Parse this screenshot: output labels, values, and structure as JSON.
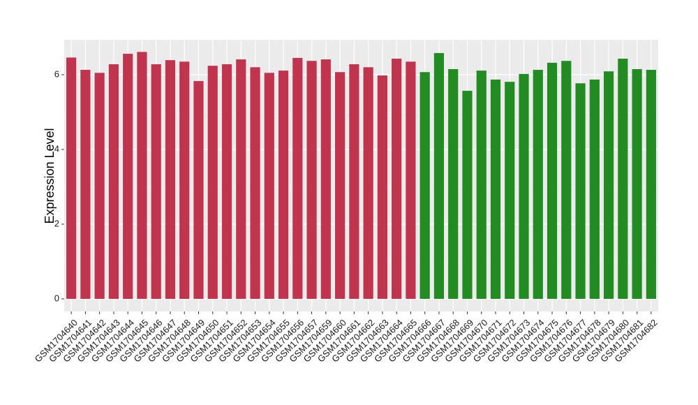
{
  "chart_data": {
    "type": "bar",
    "title": "",
    "xlabel": "",
    "ylabel": "Expression Level",
    "ylim": [
      0,
      6.9
    ],
    "yticks": [
      0,
      2,
      4,
      6
    ],
    "ytick_labels": [
      "0",
      "2",
      "4",
      "6"
    ],
    "grid": true,
    "legend": "none",
    "colors": {
      "group1": "#C0344D",
      "group2": "#228B22",
      "panel": "#EBEBEB",
      "grid": "#FFFFFF"
    },
    "categories": [
      "GSM1704640",
      "GSM1704641",
      "GSM1704642",
      "GSM1704643",
      "GSM1704644",
      "GSM1704645",
      "GSM1704646",
      "GSM1704647",
      "GSM1704648",
      "GSM1704649",
      "GSM1704650",
      "GSM1704651",
      "GSM1704652",
      "GSM1704653",
      "GSM1704654",
      "GSM1704655",
      "GSM1704656",
      "GSM1704657",
      "GSM1704659",
      "GSM1704660",
      "GSM1704661",
      "GSM1704662",
      "GSM1704663",
      "GSM1704664",
      "GSM1704665",
      "GSM1704666",
      "GSM1704667",
      "GSM1704668",
      "GSM1704669",
      "GSM1704670",
      "GSM1704671",
      "GSM1704672",
      "GSM1704673",
      "GSM1704674",
      "GSM1704675",
      "GSM1704676",
      "GSM1704677",
      "GSM1704678",
      "GSM1704679",
      "GSM1704680",
      "GSM1704681",
      "GSM1704682"
    ],
    "values": [
      6.46,
      6.13,
      6.05,
      6.28,
      6.56,
      6.61,
      6.28,
      6.39,
      6.35,
      5.83,
      6.24,
      6.28,
      6.41,
      6.2,
      6.05,
      6.11,
      6.45,
      6.37,
      6.41,
      6.07,
      6.28,
      6.2,
      5.98,
      6.43,
      6.35,
      6.07,
      6.58,
      6.15,
      5.57,
      6.11,
      5.87,
      5.81,
      6.02,
      6.13,
      6.32,
      6.37,
      5.77,
      5.87,
      6.09,
      6.43,
      6.15,
      6.13
    ],
    "groups": [
      1,
      1,
      1,
      1,
      1,
      1,
      1,
      1,
      1,
      1,
      1,
      1,
      1,
      1,
      1,
      1,
      1,
      1,
      1,
      1,
      1,
      1,
      1,
      1,
      1,
      2,
      2,
      2,
      2,
      2,
      2,
      2,
      2,
      2,
      2,
      2,
      2,
      2,
      2,
      2,
      2,
      2
    ]
  }
}
